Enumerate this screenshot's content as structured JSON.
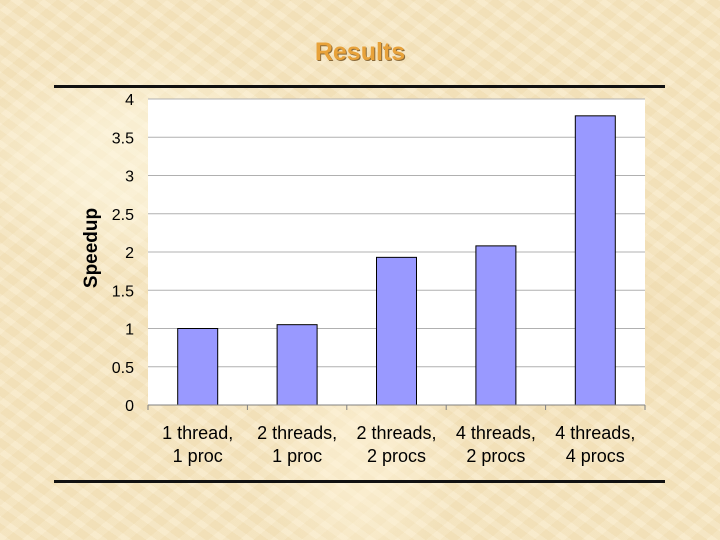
{
  "slide": {
    "title": "Results"
  },
  "colors": {
    "bar_fill": "#9999ff",
    "bar_stroke": "#000000",
    "plot_bg": "#ffffff",
    "grid": "#b0b0b0",
    "title": "#e8a23a"
  },
  "chart_data": {
    "type": "bar",
    "title": "",
    "xlabel": "",
    "ylabel": "Speedup",
    "ylim": [
      0,
      4
    ],
    "yticks": [
      "0",
      "0.5",
      "1",
      "1.5",
      "2",
      "2.5",
      "3",
      "3.5",
      "4"
    ],
    "grid": true,
    "legend": "none",
    "categories": [
      [
        "1 thread,",
        "1 proc"
      ],
      [
        "2 threads,",
        "1 proc"
      ],
      [
        "2 threads,",
        "2 procs"
      ],
      [
        "4 threads,",
        "2 procs"
      ],
      [
        "4 threads,",
        "4 procs"
      ]
    ],
    "values": [
      1.0,
      1.05,
      1.93,
      2.08,
      3.78
    ]
  }
}
